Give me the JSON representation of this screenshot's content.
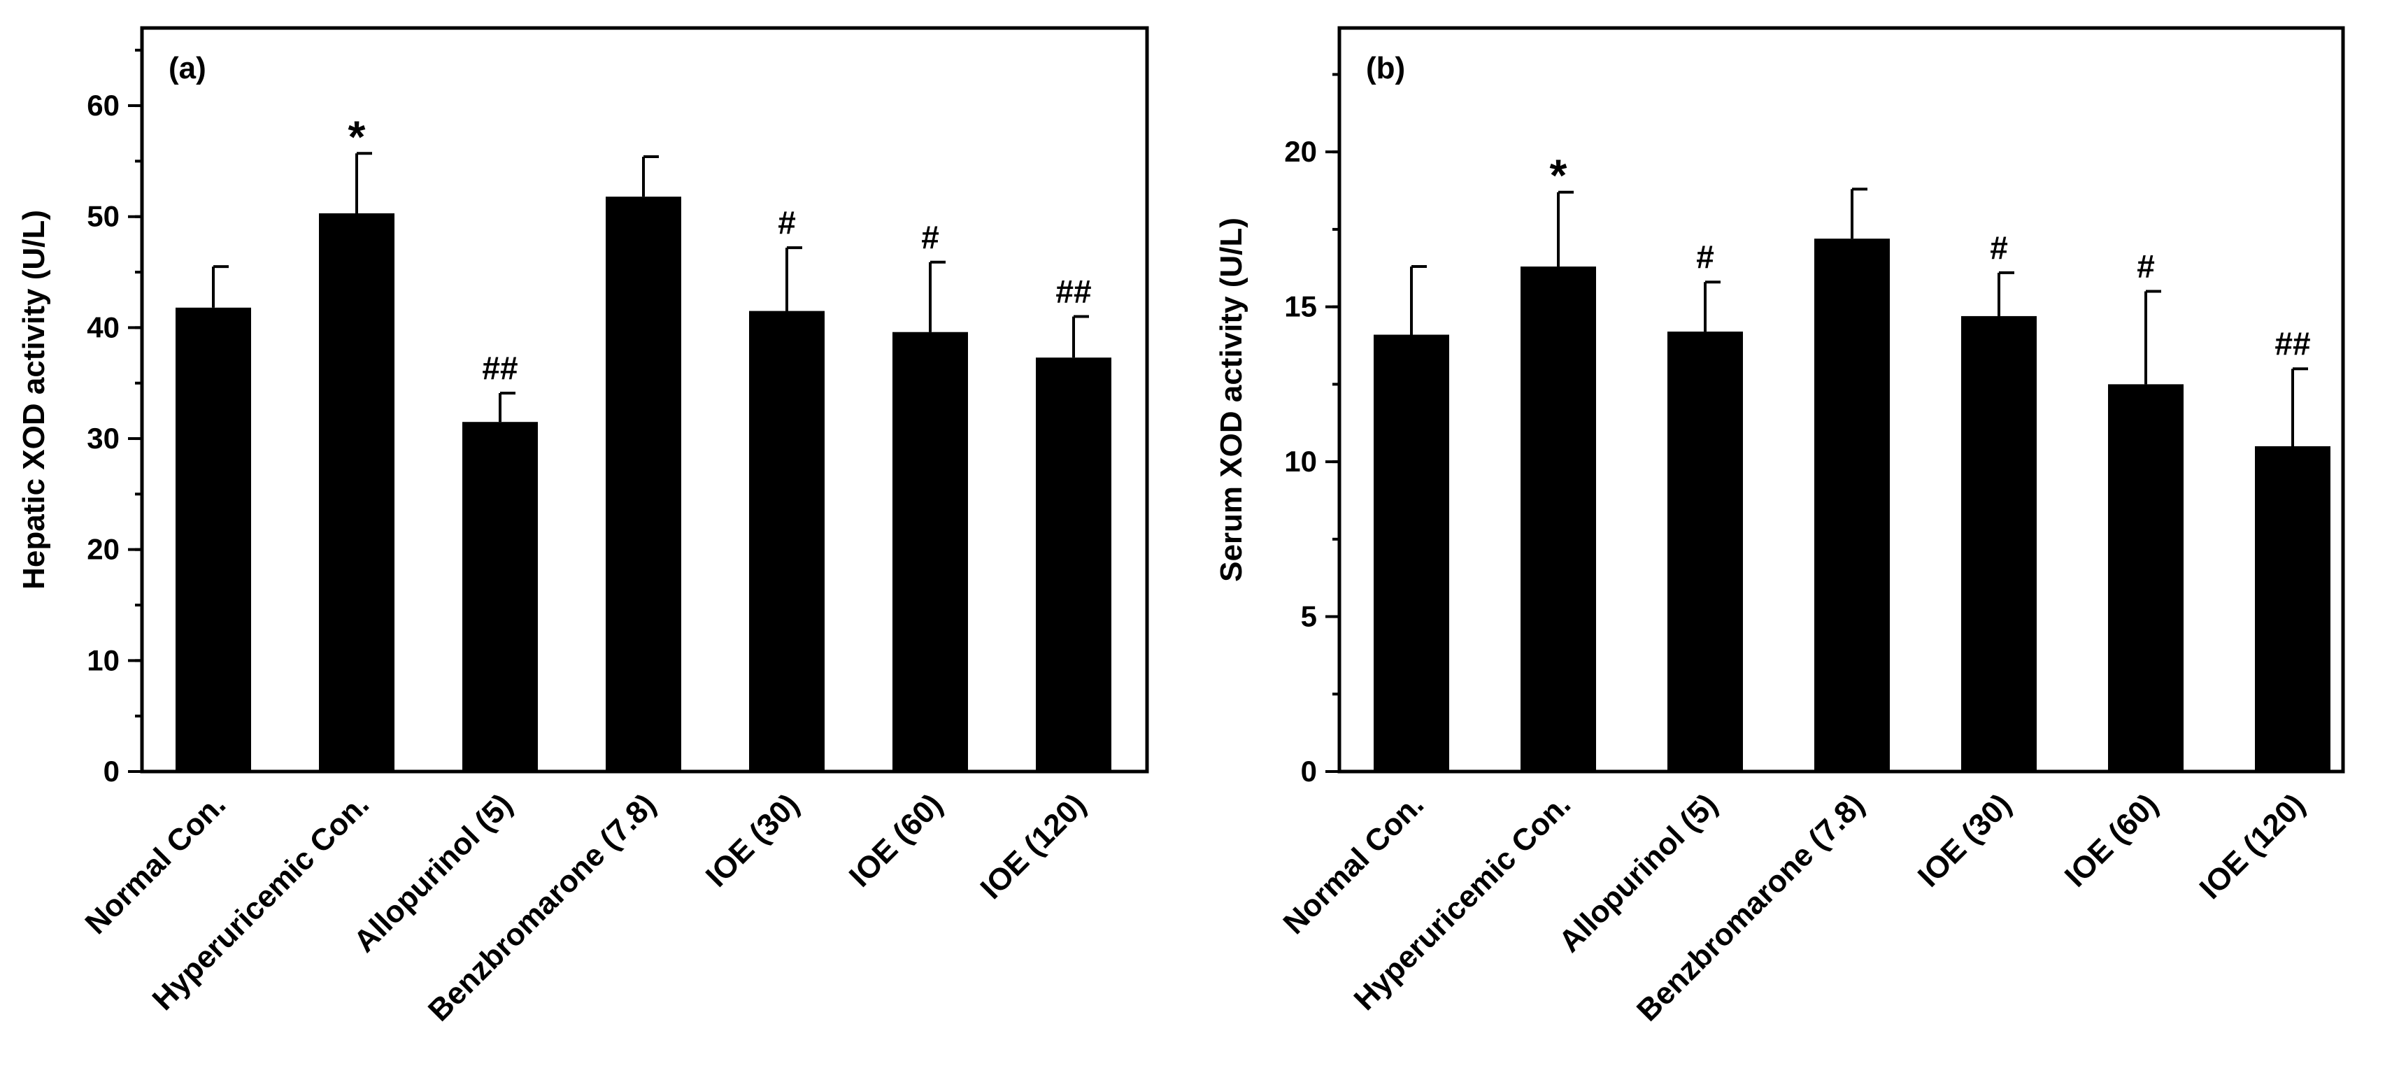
{
  "chart_data": [
    {
      "type": "bar",
      "panel_label": "(a)",
      "ylabel": "Hepatic XOD activity (U/L)",
      "xlabel": "",
      "ylim": [
        0,
        67
      ],
      "yticks": [
        0,
        10,
        20,
        30,
        40,
        50,
        60
      ],
      "minor_tick_step": 5,
      "categories": [
        "Normal Con.",
        "Hyperuricemic Con.",
        "Allopurinol (5)",
        "Benzbromarone (7.8)",
        "IOE (30)",
        "IOE (60)",
        "IOE (120)"
      ],
      "values": [
        41.8,
        50.3,
        31.5,
        51.8,
        41.5,
        39.6,
        37.3
      ],
      "errors": [
        3.7,
        5.4,
        2.6,
        3.6,
        5.7,
        6.3,
        3.7
      ],
      "annotations": [
        "",
        "*",
        "##",
        "",
        "#",
        "#",
        "##"
      ],
      "bar_color": "#000000"
    },
    {
      "type": "bar",
      "panel_label": "(b)",
      "ylabel": "Serum XOD activity (U/L)",
      "xlabel": "",
      "ylim": [
        0,
        24
      ],
      "yticks": [
        0,
        5,
        10,
        15,
        20
      ],
      "minor_tick_step": 2.5,
      "categories": [
        "Normal Con.",
        "Hyperuricemic Con.",
        "Allopurinol (5)",
        "Benzbromarone (7.8)",
        "IOE (30)",
        "IOE (60)",
        "IOE (120)"
      ],
      "values": [
        14.1,
        16.3,
        14.2,
        17.2,
        14.7,
        12.5,
        10.5
      ],
      "errors": [
        2.2,
        2.4,
        1.6,
        1.6,
        1.4,
        3.0,
        2.5
      ],
      "annotations": [
        "",
        "*",
        "#",
        "",
        "#",
        "#",
        "##"
      ],
      "bar_color": "#000000"
    }
  ]
}
